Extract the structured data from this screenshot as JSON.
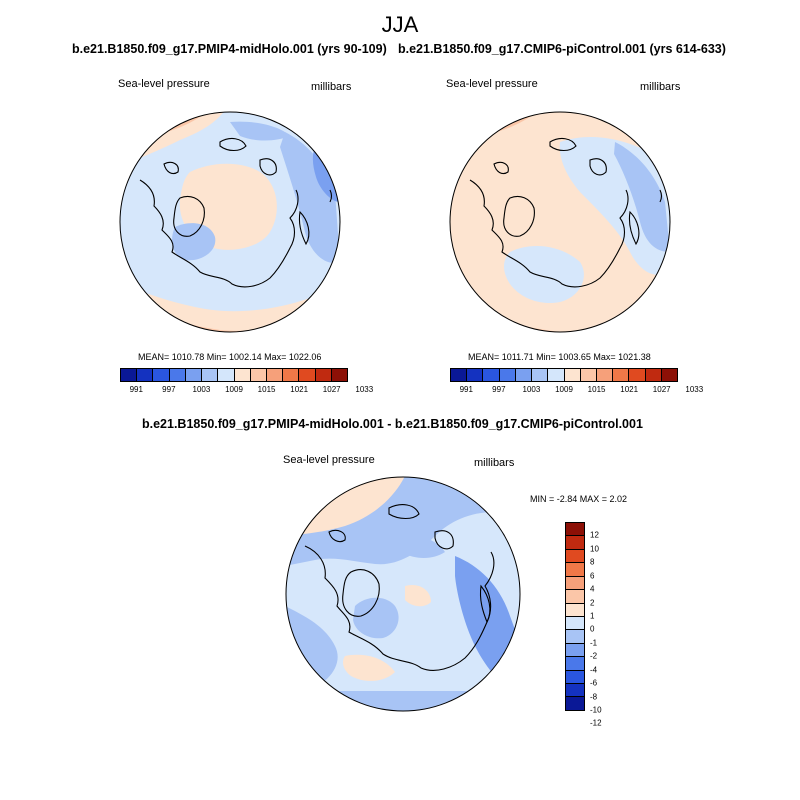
{
  "title": "JJA",
  "panels": [
    {
      "subtitle": "b.e21.B1850.f09_g17.PMIP4-midHolo.001 (yrs 90-109)",
      "variable": "Sea-level pressure",
      "units": "millibars",
      "stats": "MEAN= 1010.78  Min= 1002.14  Max= 1022.06"
    },
    {
      "subtitle": "b.e21.B1850.f09_g17.CMIP6-piControl.001 (yrs 614-633)",
      "variable": "Sea-level pressure",
      "units": "millibars",
      "stats": "MEAN= 1011.71  Min= 1003.65  Max= 1021.38"
    }
  ],
  "diff": {
    "subtitle": "b.e21.B1850.f09_g17.PMIP4-midHolo.001 - b.e21.B1850.f09_g17.CMIP6-piControl.001",
    "variable": "Sea-level pressure",
    "units": "millibars",
    "minmax": "MIN =  -2.84 MAX =   2.02"
  },
  "colorbar_main": {
    "colors": [
      "#0a1896",
      "#1432c0",
      "#2a56e0",
      "#4a78ea",
      "#7aa0f0",
      "#a8c4f5",
      "#d4e6fb",
      "#fde4d0",
      "#fbc6a8",
      "#f6a07a",
      "#f07848",
      "#e04a20",
      "#c02a10",
      "#8c1006"
    ],
    "labels": [
      "991",
      "997",
      "1003",
      "1009",
      "1015",
      "1021",
      "1027",
      "1033"
    ]
  },
  "colorbar_diff": {
    "colors": [
      "#8c1006",
      "#c02a10",
      "#e04a20",
      "#f07848",
      "#f6a07a",
      "#fbc6a8",
      "#fde4d0",
      "#d4e6fb",
      "#a8c4f5",
      "#7aa0f0",
      "#4a78ea",
      "#2a56e0",
      "#1432c0",
      "#0a1896"
    ],
    "labels": [
      "12",
      "10",
      "8",
      "6",
      "4",
      "2",
      "1",
      "0",
      "-1",
      "-2",
      "-4",
      "-6",
      "-8",
      "-10",
      "-12"
    ]
  }
}
